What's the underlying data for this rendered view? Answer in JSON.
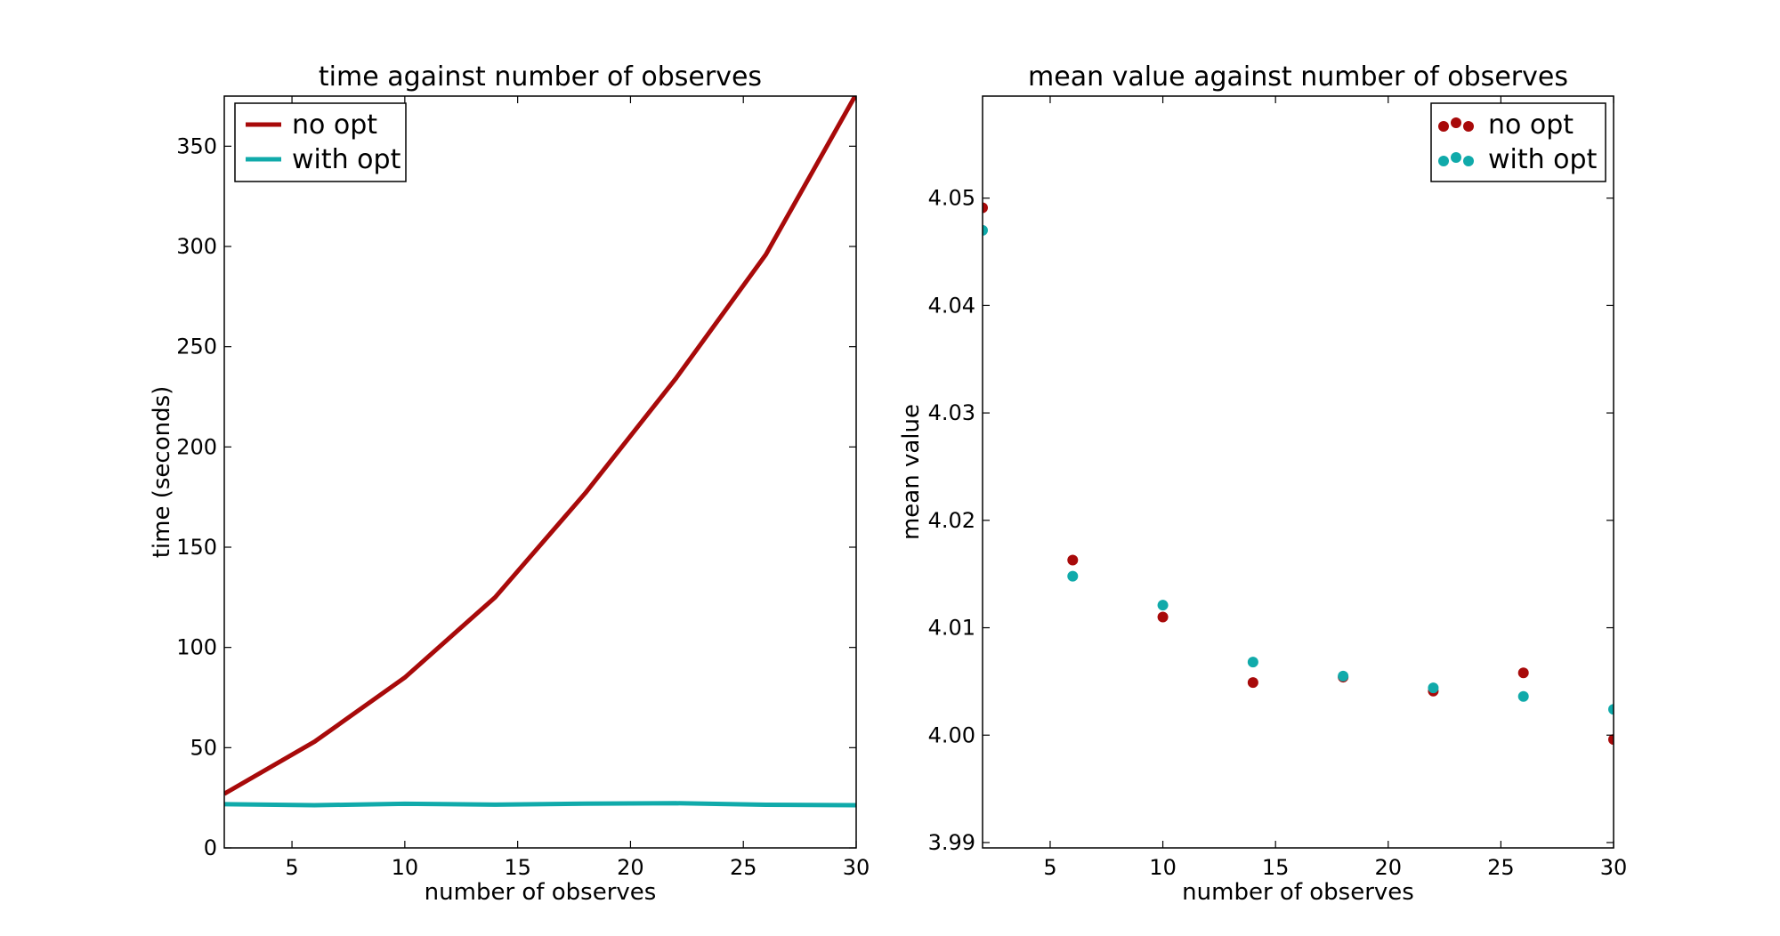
{
  "colors": {
    "no_opt": "#a80a0a",
    "with_opt": "#10aaaa",
    "axes": "#000000",
    "background": "#ffffff"
  },
  "chart_data": [
    {
      "type": "line",
      "title": "time against number of observes",
      "xlabel": "number of observes",
      "ylabel": "time (seconds)",
      "xlim": [
        2,
        30
      ],
      "ylim": [
        0,
        375
      ],
      "xticks": [
        5,
        10,
        15,
        20,
        25,
        30
      ],
      "yticks": [
        0,
        50,
        100,
        150,
        200,
        250,
        300,
        350
      ],
      "grid": false,
      "legend_position": "top-left",
      "x": [
        2,
        6,
        10,
        14,
        18,
        22,
        26,
        30
      ],
      "series": [
        {
          "name": "no opt",
          "color": "#a80a0a",
          "values": [
            27,
            53,
            85,
            125,
            177,
            234,
            296,
            376
          ]
        },
        {
          "name": "with opt",
          "color": "#10aaaa",
          "values": [
            21.8,
            21.3,
            22.0,
            21.6,
            22.1,
            22.3,
            21.5,
            21.3
          ]
        }
      ]
    },
    {
      "type": "scatter",
      "title": "mean value against number of observes",
      "xlabel": "number of observes",
      "ylabel": "mean value",
      "xlim": [
        2,
        30
      ],
      "ylim": [
        3.9895,
        4.0595
      ],
      "xticks": [
        5,
        10,
        15,
        20,
        25,
        30
      ],
      "yticks": [
        3.99,
        4.0,
        4.01,
        4.02,
        4.03,
        4.04,
        4.05
      ],
      "ytick_labels": [
        "3.99",
        "4.00",
        "4.01",
        "4.02",
        "4.03",
        "4.04",
        "4.05"
      ],
      "grid": false,
      "legend_position": "top-right",
      "x": [
        2,
        6,
        10,
        14,
        18,
        22,
        26,
        30
      ],
      "series": [
        {
          "name": "no opt",
          "color": "#a80a0a",
          "values": [
            4.0491,
            4.0163,
            4.011,
            4.0049,
            4.0054,
            4.0041,
            4.0058,
            3.9996
          ]
        },
        {
          "name": "with opt",
          "color": "#10aaaa",
          "values": [
            4.047,
            4.0148,
            4.0121,
            4.0068,
            4.0055,
            4.0044,
            4.0036,
            4.0024
          ]
        }
      ]
    }
  ]
}
